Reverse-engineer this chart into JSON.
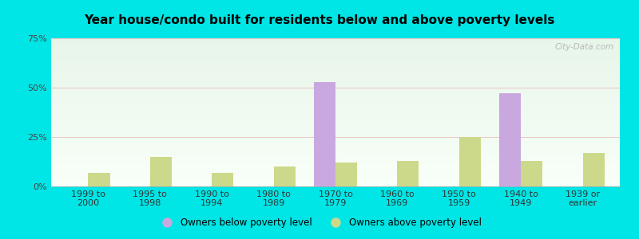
{
  "title": "Year house/condo built for residents below and above poverty levels",
  "categories": [
    "1999 to\n2000",
    "1995 to\n1998",
    "1990 to\n1994",
    "1980 to\n1989",
    "1970 to\n1979",
    "1960 to\n1969",
    "1950 to\n1959",
    "1940 to\n1949",
    "1939 or\nearlier"
  ],
  "below_poverty": [
    0,
    0,
    0,
    0,
    53,
    0,
    0,
    47,
    0
  ],
  "above_poverty": [
    7,
    15,
    7,
    10,
    12,
    13,
    25,
    13,
    17
  ],
  "below_color": "#c9a8e0",
  "above_color": "#ccd98a",
  "ylim": [
    0,
    75
  ],
  "yticks": [
    0,
    25,
    50,
    75
  ],
  "ytick_labels": [
    "0%",
    "25%",
    "50%",
    "75%"
  ],
  "bg_top": "#e8f5e9",
  "bg_bottom": "#f8fff8",
  "outer_background": "#00e5e5",
  "bar_width": 0.35,
  "legend_below_label": "Owners below poverty level",
  "legend_above_label": "Owners above poverty level",
  "watermark": "City-Data.com",
  "grid_color": "#e8c8c8",
  "title_fontsize": 11,
  "tick_fontsize": 8
}
